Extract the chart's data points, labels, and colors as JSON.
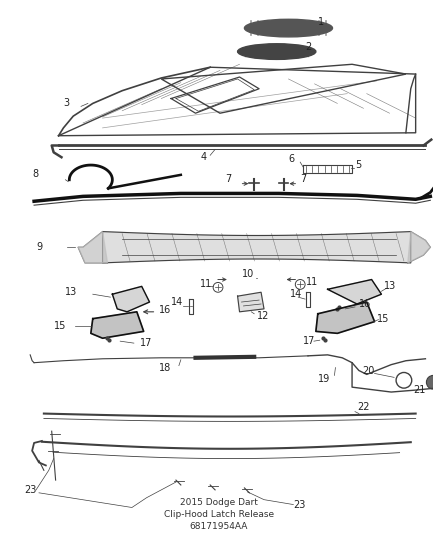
{
  "title": "2015 Dodge Dart\nClip-Hood Latch Release\n68171954AA",
  "title_fontsize": 6.5,
  "bg_color": "#ffffff",
  "line_color": "#404040",
  "label_color": "#222222",
  "label_fontsize": 7.0
}
